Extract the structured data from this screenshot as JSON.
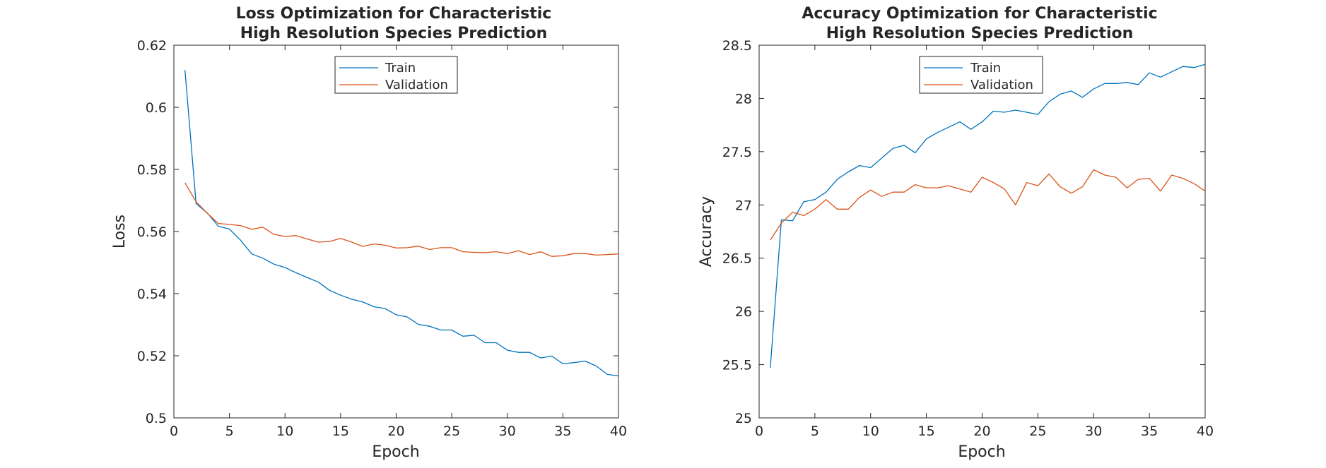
{
  "chart_data": [
    {
      "type": "line",
      "title_lines": [
        "Loss Optimization for Characteristic",
        "High Resolution Species Prediction"
      ],
      "xlabel": "Epoch",
      "ylabel": "Loss",
      "xlim": [
        0,
        40
      ],
      "ylim": [
        0.5,
        0.62
      ],
      "xticks": [
        0,
        5,
        10,
        15,
        20,
        25,
        30,
        35,
        40
      ],
      "xtick_labels": [
        "0",
        "5",
        "10",
        "15",
        "20",
        "25",
        "30",
        "35",
        "40"
      ],
      "yticks": [
        0.5,
        0.52,
        0.54,
        0.56,
        0.58,
        0.6,
        0.62
      ],
      "ytick_labels": [
        "0.5",
        "0.52",
        "0.54",
        "0.56",
        "0.58",
        "0.6",
        "0.62"
      ],
      "grid": false,
      "legend_position": "top-center",
      "x": [
        1,
        2,
        3,
        4,
        5,
        6,
        7,
        8,
        9,
        10,
        11,
        12,
        13,
        14,
        15,
        16,
        17,
        18,
        19,
        20,
        21,
        22,
        23,
        24,
        25,
        26,
        27,
        28,
        29,
        30,
        31,
        32,
        33,
        34,
        35,
        36,
        37,
        38,
        39,
        40
      ],
      "series": [
        {
          "name": "Train",
          "color": "#0072BD",
          "values": [
            0.612,
            0.569,
            0.566,
            0.5617,
            0.5608,
            0.5572,
            0.5528,
            0.5514,
            0.5495,
            0.5484,
            0.5467,
            0.5452,
            0.5437,
            0.5411,
            0.5395,
            0.5382,
            0.5373,
            0.5358,
            0.5352,
            0.5332,
            0.5325,
            0.5301,
            0.5295,
            0.5283,
            0.5283,
            0.5263,
            0.5266,
            0.5242,
            0.5242,
            0.5218,
            0.5211,
            0.5211,
            0.5193,
            0.5199,
            0.5174,
            0.5178,
            0.5183,
            0.5167,
            0.514,
            0.5135
          ]
        },
        {
          "name": "Validation",
          "color": "#D95319",
          "values": [
            0.5757,
            0.5696,
            0.5659,
            0.5626,
            0.5623,
            0.5619,
            0.5607,
            0.5614,
            0.5591,
            0.5584,
            0.5587,
            0.5576,
            0.5566,
            0.5568,
            0.5578,
            0.5566,
            0.5552,
            0.556,
            0.5556,
            0.5547,
            0.5548,
            0.5553,
            0.5542,
            0.5548,
            0.5548,
            0.5535,
            0.5533,
            0.5532,
            0.5535,
            0.5529,
            0.5538,
            0.5526,
            0.5535,
            0.552,
            0.5522,
            0.5529,
            0.5529,
            0.5524,
            0.5526,
            0.5528
          ]
        }
      ]
    },
    {
      "type": "line",
      "title_lines": [
        "Accuracy Optimization for Characteristic",
        "High Resolution Species Prediction"
      ],
      "xlabel": "Epoch",
      "ylabel": "Accuracy",
      "xlim": [
        0,
        40
      ],
      "ylim": [
        25,
        28.5
      ],
      "xticks": [
        0,
        5,
        10,
        15,
        20,
        25,
        30,
        35,
        40
      ],
      "xtick_labels": [
        "0",
        "5",
        "10",
        "15",
        "20",
        "25",
        "30",
        "35",
        "40"
      ],
      "yticks": [
        25,
        25.5,
        26,
        26.5,
        27,
        27.5,
        28,
        28.5
      ],
      "ytick_labels": [
        "25",
        "25.5",
        "26",
        "26.5",
        "27",
        "27.5",
        "28",
        "28.5"
      ],
      "grid": false,
      "legend_position": "top-center",
      "x": [
        1,
        2,
        3,
        4,
        5,
        6,
        7,
        8,
        9,
        10,
        11,
        12,
        13,
        14,
        15,
        16,
        17,
        18,
        19,
        20,
        21,
        22,
        23,
        24,
        25,
        26,
        27,
        28,
        29,
        30,
        31,
        32,
        33,
        34,
        35,
        36,
        37,
        38,
        39,
        40
      ],
      "series": [
        {
          "name": "Train",
          "color": "#0072BD",
          "values": [
            25.47,
            26.86,
            26.85,
            27.03,
            27.05,
            27.12,
            27.24,
            27.31,
            27.37,
            27.35,
            27.44,
            27.53,
            27.56,
            27.49,
            27.62,
            27.68,
            27.73,
            27.78,
            27.71,
            27.78,
            27.88,
            27.87,
            27.89,
            27.87,
            27.85,
            27.97,
            28.04,
            28.07,
            28.01,
            28.09,
            28.14,
            28.14,
            28.15,
            28.13,
            28.24,
            28.2,
            28.25,
            28.3,
            28.29,
            28.32
          ]
        },
        {
          "name": "Validation",
          "color": "#D95319",
          "values": [
            26.67,
            26.83,
            26.93,
            26.9,
            26.96,
            27.05,
            26.96,
            26.96,
            27.07,
            27.14,
            27.08,
            27.12,
            27.12,
            27.19,
            27.16,
            27.16,
            27.18,
            27.15,
            27.12,
            27.26,
            27.21,
            27.15,
            27.0,
            27.21,
            27.18,
            27.29,
            27.17,
            27.11,
            27.17,
            27.33,
            27.28,
            27.26,
            27.16,
            27.24,
            27.25,
            27.13,
            27.28,
            27.25,
            27.2,
            27.13
          ]
        }
      ]
    }
  ]
}
